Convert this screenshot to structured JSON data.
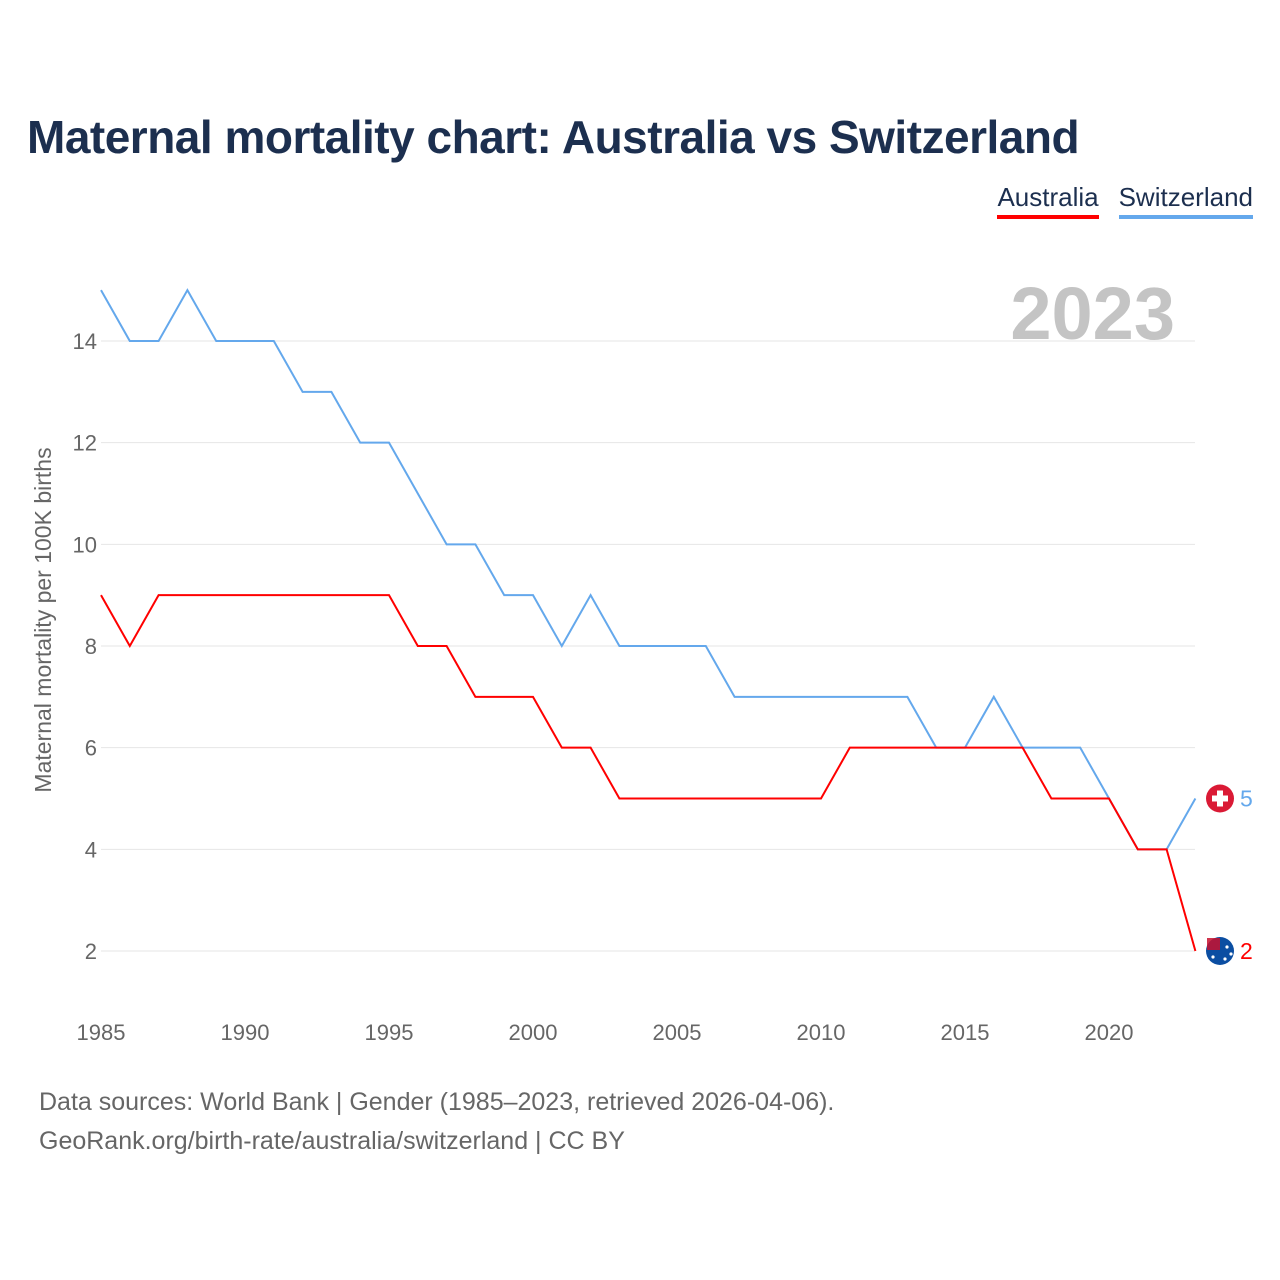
{
  "title": "Maternal mortality chart: Australia vs Switzerland",
  "legend": [
    {
      "name": "Australia",
      "color": "#ff0000"
    },
    {
      "name": "Switzerland",
      "color": "#64a8ec"
    }
  ],
  "footer": {
    "line1": "Data sources: World Bank | Gender (1985–2023, retrieved 2026-04-06).",
    "line2": "GeoRank.org/birth-rate/australia/switzerland | CC BY"
  },
  "chart_data": {
    "type": "line",
    "title": "Maternal mortality chart: Australia vs Switzerland",
    "year_label": "2023",
    "xlabel": "",
    "ylabel": "Maternal mortality per 100K births",
    "xlim": [
      1985,
      2023
    ],
    "ylim": [
      1,
      15.5
    ],
    "xticks": [
      1985,
      1990,
      1995,
      2000,
      2005,
      2010,
      2015,
      2020
    ],
    "yticks": [
      2,
      4,
      6,
      8,
      10,
      12,
      14
    ],
    "grid": true,
    "legend_position": "top-right",
    "x": [
      1985,
      1986,
      1987,
      1988,
      1989,
      1990,
      1991,
      1992,
      1993,
      1994,
      1995,
      1996,
      1997,
      1998,
      1999,
      2000,
      2001,
      2002,
      2003,
      2004,
      2005,
      2006,
      2007,
      2008,
      2009,
      2010,
      2011,
      2012,
      2013,
      2014,
      2015,
      2016,
      2017,
      2018,
      2019,
      2020,
      2021,
      2022,
      2023
    ],
    "series": [
      {
        "name": "Australia",
        "color": "#ff0000",
        "end_label": "2",
        "values": [
          9,
          8,
          9,
          9,
          9,
          9,
          9,
          9,
          9,
          9,
          9,
          8,
          8,
          7,
          7,
          7,
          6,
          6,
          5,
          5,
          5,
          5,
          5,
          5,
          5,
          5,
          6,
          6,
          6,
          6,
          6,
          6,
          6,
          5,
          5,
          5,
          4,
          4,
          2
        ]
      },
      {
        "name": "Switzerland",
        "color": "#64a8ec",
        "end_label": "5",
        "values": [
          15,
          14,
          14,
          15,
          14,
          14,
          14,
          13,
          13,
          12,
          12,
          11,
          10,
          10,
          9,
          9,
          8,
          9,
          8,
          8,
          8,
          8,
          7,
          7,
          7,
          7,
          7,
          7,
          7,
          6,
          6,
          7,
          6,
          6,
          6,
          5,
          4,
          4,
          5
        ]
      }
    ]
  }
}
